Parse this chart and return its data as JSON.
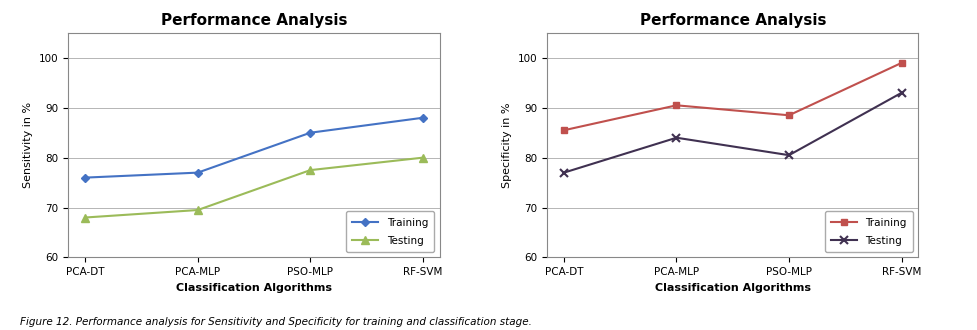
{
  "categories": [
    "PCA-DT",
    "PCA-MLP",
    "PSO-MLP",
    "RF-SVM"
  ],
  "sensitivity_training": [
    76,
    77,
    85,
    88
  ],
  "sensitivity_testing": [
    68,
    69.5,
    77.5,
    80
  ],
  "specificity_training": [
    85.5,
    90.5,
    88.5,
    99
  ],
  "specificity_testing": [
    77,
    84,
    80.5,
    93
  ],
  "title": "Performance Analysis",
  "xlabel": "Classification Algorithms",
  "ylabel_left": "Sensitivity in %",
  "ylabel_right": "Specificity in %",
  "ylim": [
    60,
    105
  ],
  "yticks": [
    60,
    70,
    80,
    90,
    100
  ],
  "legend1_labels": [
    "Training",
    "Testing"
  ],
  "legend2_labels": [
    "Training",
    "Testing"
  ],
  "training_color_left": "#4472C4",
  "testing_color_left": "#9BBB59",
  "training_color_right": "#C0504D",
  "testing_color_right": "#403151",
  "caption": "Figure 12. Performance analysis for Sensitivity and Specificity for training and classification stage.",
  "title_fontsize": 11,
  "axis_label_fontsize": 8,
  "tick_fontsize": 7.5,
  "legend_fontsize": 7.5,
  "caption_fontsize": 7.5
}
